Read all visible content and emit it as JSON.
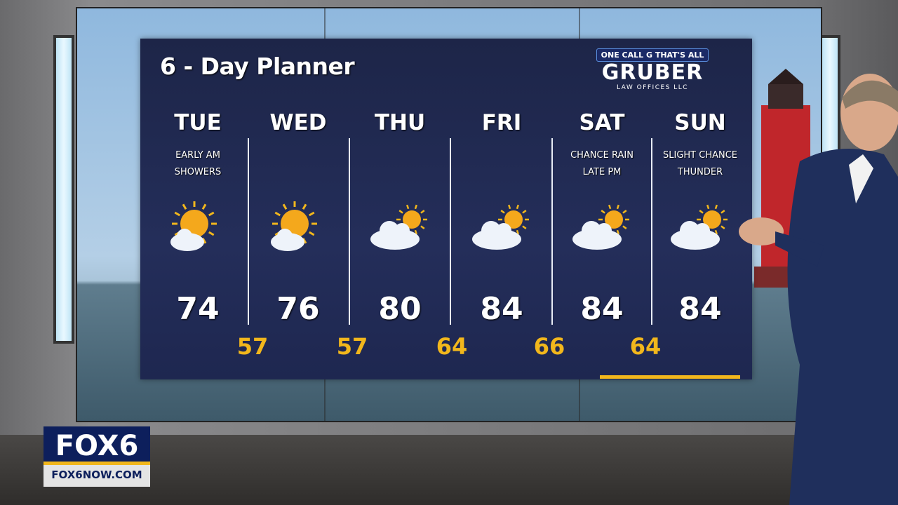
{
  "title": "6 - Day Planner",
  "sponsor": {
    "tagline": "ONE CALL G THAT'S ALL",
    "name": "GRUBER",
    "sub": "LAW OFFICES LLC"
  },
  "days": [
    {
      "day": "TUE",
      "desc1": "EARLY AM",
      "desc2": "SHOWERS",
      "icon": "sun-cloud-icon",
      "high": "74"
    },
    {
      "day": "WED",
      "desc1": "",
      "desc2": "",
      "icon": "sun-cloud-icon",
      "high": "76"
    },
    {
      "day": "THU",
      "desc1": "",
      "desc2": "",
      "icon": "cloud-sun-icon",
      "high": "80"
    },
    {
      "day": "FRI",
      "desc1": "",
      "desc2": "",
      "icon": "cloud-sun-icon",
      "high": "84"
    },
    {
      "day": "SAT",
      "desc1": "CHANCE RAIN",
      "desc2": "LATE PM",
      "icon": "cloud-sun-icon",
      "high": "84"
    },
    {
      "day": "SUN",
      "desc1": "SLIGHT CHANCE",
      "desc2": "THUNDER",
      "icon": "cloud-sun-icon",
      "high": "84"
    }
  ],
  "lows": [
    "57",
    "57",
    "64",
    "66",
    "64"
  ],
  "station": {
    "name": "FOX6",
    "url": "FOX6NOW.COM"
  },
  "colors": {
    "panel": "#1d2548",
    "low_temp": "#f2b71c",
    "brand": "#0d1f5c"
  }
}
